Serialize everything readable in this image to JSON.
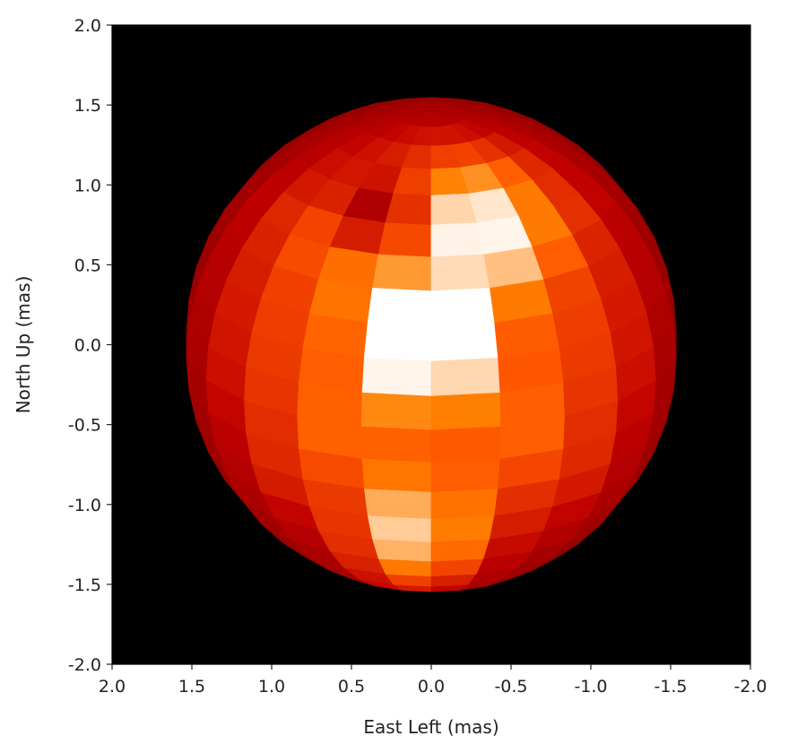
{
  "chart_data": {
    "type": "heatmap",
    "title": "",
    "xlabel": "East Left (mas)",
    "ylabel": "North Up (mas)",
    "xlim": [
      2.0,
      -2.0
    ],
    "ylim": [
      -2.0,
      2.0
    ],
    "x_ticks": [
      "2.0",
      "1.5",
      "1.0",
      "0.5",
      "0.0",
      "-0.5",
      "-1.0",
      "-1.5",
      "-2.0"
    ],
    "y_ticks": [
      "2.0",
      "1.5",
      "1.0",
      "0.5",
      "0.0",
      "-0.5",
      "-1.0",
      "-1.5",
      "-2.0"
    ],
    "background_color": "#000000",
    "colormap": "gist_heat",
    "star_center": [
      0.0,
      0.0
    ],
    "star_radius": 1.55,
    "bright_spots": [
      {
        "x": 0.05,
        "y": 0.05,
        "intensity": 1.0
      },
      {
        "x": -0.3,
        "y": 0.75,
        "intensity": 0.95
      },
      {
        "x": 0.1,
        "y": -1.2,
        "intensity": 0.85
      }
    ],
    "dark_spots": [
      {
        "x": 0.3,
        "y": 0.8,
        "intensity": 0.55
      }
    ]
  }
}
